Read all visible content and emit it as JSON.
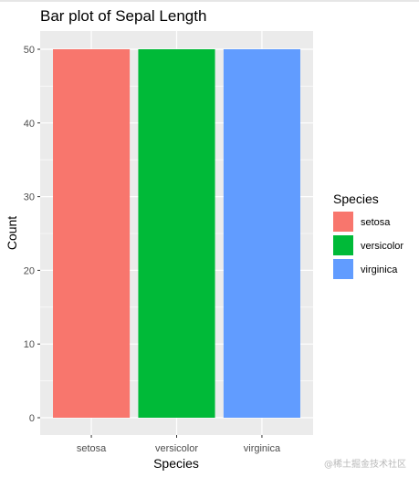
{
  "chart_data": {
    "type": "bar",
    "title": "Bar plot of Sepal Length",
    "xlabel": "Species",
    "ylabel": "Count",
    "categories": [
      "setosa",
      "versicolor",
      "virginica"
    ],
    "values": [
      50,
      50,
      50
    ],
    "colors": [
      "#F8766D",
      "#00BA38",
      "#619CFF"
    ],
    "ylim": [
      0,
      52.5
    ],
    "yticks": [
      0,
      10,
      20,
      30,
      40,
      50
    ],
    "grid": true,
    "panel_background": "#EBEBEB",
    "legend": {
      "title": "Species",
      "position": "right",
      "entries": [
        "setosa",
        "versicolor",
        "virginica"
      ]
    }
  },
  "watermark": "@稀土掘金技术社区"
}
